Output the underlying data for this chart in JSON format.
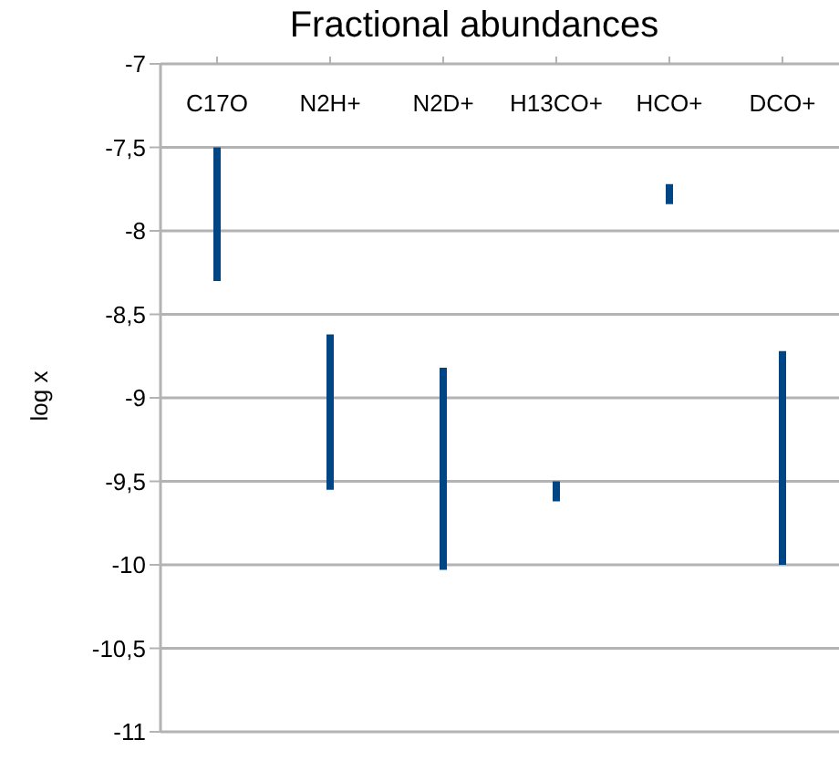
{
  "chart_data": {
    "type": "bar",
    "title": "Fractional abundances",
    "ylabel": "log x",
    "categories": [
      "C17O",
      "N2H+",
      "N2D+",
      "H13CO+",
      "HCO+",
      "DCO+"
    ],
    "base": [
      -8.3,
      -9.55,
      -10.03,
      -9.62,
      -7.84,
      -10
    ],
    "values": [
      0.8,
      0.93,
      1.21,
      0.12,
      0.12,
      1.28
    ],
    "color": "#004586",
    "ylim": [
      -11,
      -7
    ],
    "yticks": [
      -11,
      {
        "value": -10.5,
        "label": "-10,5"
      },
      -10,
      {
        "value": -9.5,
        "label": "-9,5"
      },
      -9,
      {
        "value": -8.5,
        "label": "-8,5"
      },
      -8,
      {
        "value": -7.5,
        "label": "-7,5"
      },
      -7
    ],
    "grid": "y"
  }
}
